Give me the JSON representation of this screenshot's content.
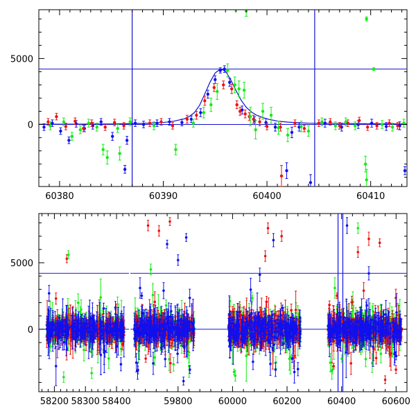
{
  "chart_data": [
    {
      "type": "scatter",
      "panel": "top",
      "title": "",
      "xlabel": "",
      "ylabel": "",
      "xlim": [
        60378,
        60413.5
      ],
      "ylim": [
        -4700,
        8700
      ],
      "xticks": [
        60380,
        60390,
        60400,
        60410
      ],
      "xtick_labels": [
        "60380",
        "60390",
        "60400",
        "60410"
      ],
      "yticks": [
        0,
        5000
      ],
      "ytick_labels": [
        "0",
        "5000"
      ],
      "grid": false,
      "legend": "none",
      "colors": {
        "blue": "#1010ee",
        "red": "#ee1010",
        "green": "#10ee10",
        "model": "#1010cc"
      },
      "reference_lines": {
        "vertical": [
          60387.0,
          60404.6
        ],
        "horizontal": [
          4200,
          0
        ]
      },
      "model_curve": {
        "x": [
          60378,
          60385,
          60388,
          60390,
          60391,
          60392,
          60392.5,
          60393,
          60393.5,
          60394,
          60394.5,
          60395,
          60395.5,
          60396,
          60396.5,
          60397,
          60397.5,
          60398,
          60398.5,
          60399,
          60400,
          60401,
          60402,
          60404,
          60413.5
        ],
        "y": [
          20,
          40,
          80,
          150,
          250,
          420,
          600,
          900,
          1450,
          2300,
          3200,
          3900,
          4200,
          4050,
          3400,
          2600,
          1850,
          1300,
          950,
          700,
          420,
          260,
          180,
          100,
          40
        ]
      },
      "series": [
        {
          "color": "blue",
          "x": [
            60378.5,
            60379.3,
            60380.1,
            60380.9,
            60381.6,
            60382.4,
            60383.2,
            60384.0,
            60385.1,
            60386.5,
            60387.3,
            60388.1,
            60389.4,
            60390.6,
            60391.8,
            60392.7,
            60393.6,
            60394.3,
            60395.0,
            60395.5,
            60395.9,
            60396.4,
            60397.6,
            60398.8,
            60399.9,
            60400.8,
            60401.9,
            60402.4,
            60403.1,
            60404.2,
            60405.6,
            60407.2,
            60408.8,
            60410.1,
            60411.5,
            60412.8,
            60413.3,
            60386.3
          ],
          "y": [
            -200,
            100,
            -500,
            -1200,
            50,
            -300,
            -100,
            200,
            -900,
            -1200,
            100,
            0,
            100,
            200,
            150,
            400,
            900,
            2300,
            3400,
            4100,
            4200,
            3200,
            1100,
            300,
            150,
            -200,
            -3500,
            -600,
            -200,
            -4400,
            100,
            -200,
            0,
            100,
            -150,
            -100,
            -3500,
            -3400
          ],
          "yerr": [
            250,
            250,
            250,
            250,
            250,
            250,
            250,
            250,
            300,
            300,
            250,
            250,
            250,
            250,
            250,
            250,
            300,
            300,
            300,
            200,
            250,
            300,
            300,
            300,
            300,
            300,
            600,
            400,
            300,
            600,
            300,
            300,
            300,
            300,
            300,
            300,
            300,
            300
          ]
        },
        {
          "color": "red",
          "x": [
            60378.9,
            60379.7,
            60380.6,
            60381.5,
            60382.3,
            60383.1,
            60384.4,
            60385.3,
            60386.2,
            60388.7,
            60389.8,
            60390.9,
            60392.3,
            60393.2,
            60394.0,
            60394.9,
            60395.8,
            60396.6,
            60397.1,
            60397.4,
            60397.9,
            60398.3,
            60398.7,
            60399.3,
            60400.0,
            60401.3,
            60402.7,
            60403.6,
            60405.0,
            60406.1,
            60407.0,
            60407.8,
            60408.9,
            60409.7,
            60410.6,
            60411.8,
            60412.6,
            60401.4
          ],
          "y": [
            200,
            600,
            -150,
            250,
            -300,
            100,
            -200,
            150,
            -100,
            100,
            200,
            -100,
            400,
            700,
            1800,
            2800,
            3000,
            2700,
            1500,
            1000,
            800,
            600,
            400,
            200,
            -150,
            -200,
            100,
            -300,
            100,
            200,
            -100,
            100,
            300,
            -200,
            -100,
            100,
            -100,
            -3900
          ],
          "yerr": [
            250,
            250,
            250,
            250,
            250,
            250,
            250,
            250,
            250,
            250,
            250,
            250,
            300,
            300,
            350,
            300,
            300,
            350,
            300,
            300,
            300,
            300,
            300,
            300,
            250,
            300,
            250,
            250,
            250,
            250,
            250,
            250,
            250,
            250,
            250,
            250,
            250,
            800
          ]
        },
        {
          "color": "green",
          "x": [
            60379.1,
            60380.4,
            60381.2,
            60382.0,
            60382.8,
            60383.6,
            60384.2,
            60385.6,
            60386.8,
            60389.1,
            60391.2,
            60392.9,
            60393.9,
            60394.6,
            60395.2,
            60396.2,
            60396.9,
            60397.3,
            60397.8,
            60398.4,
            60398.9,
            60399.6,
            60400.4,
            60401.1,
            60402.0,
            60403.3,
            60404.0,
            60405.3,
            60406.6,
            60407.6,
            60408.5,
            60409.6,
            60410.3,
            60411.1,
            60412.1,
            60413.2,
            60398.0,
            60397.0,
            60409.5,
            60409.6,
            60384.6,
            60385.8
          ],
          "y": [
            -100,
            200,
            -900,
            -400,
            100,
            -200,
            -1900,
            -300,
            200,
            -100,
            -1900,
            100,
            900,
            1500,
            2500,
            4100,
            3000,
            2700,
            2600,
            600,
            -400,
            1000,
            700,
            -250,
            -800,
            -150,
            -500,
            200,
            -100,
            200,
            -100,
            8000,
            4200,
            0,
            -200,
            100,
            8600,
            9000,
            -3000,
            -4200,
            -2500,
            -2200
          ],
          "yerr": [
            300,
            300,
            300,
            300,
            300,
            300,
            400,
            300,
            300,
            300,
            400,
            300,
            400,
            500,
            600,
            500,
            600,
            600,
            600,
            700,
            700,
            600,
            600,
            500,
            500,
            400,
            400,
            300,
            300,
            300,
            300,
            150,
            100,
            300,
            300,
            300,
            400,
            400,
            600,
            800,
            500,
            500
          ]
        }
      ]
    },
    {
      "type": "scatter",
      "panel": "bottom",
      "title": "",
      "xlabel": "",
      "ylabel": "",
      "broken_x_axis": true,
      "segments": [
        {
          "xlim": [
            58150,
            58440
          ],
          "xticks": [
            58200,
            58300,
            58400
          ],
          "xtick_labels": [
            "58200",
            "58300",
            "58400"
          ]
        },
        {
          "xlim": [
            59625,
            60640
          ],
          "xticks": [
            59800,
            60000,
            60200,
            60400,
            60600
          ],
          "xtick_labels": [
            "59800",
            "60000",
            "60200",
            "60400",
            "60600"
          ]
        }
      ],
      "ylim": [
        -4700,
        8700
      ],
      "yticks": [
        0,
        5000
      ],
      "ytick_labels": [
        "0",
        "5000"
      ],
      "grid": false,
      "legend": "none",
      "colors": {
        "blue": "#1010ee",
        "red": "#ee1010",
        "green": "#10ee10"
      },
      "reference_lines": {
        "vertical": [
          60387.0,
          60404.6
        ],
        "horizontal": [
          4200,
          0
        ]
      },
      "seasons": [
        {
          "x_start": 58175,
          "x_end": 58425,
          "scatter": 900
        },
        {
          "x_start": 59640,
          "x_end": 59860,
          "scatter": 1300
        },
        {
          "x_start": 59985,
          "x_end": 60250,
          "scatter": 1500
        },
        {
          "x_start": 60350,
          "x_end": 60620,
          "scatter": 1300
        }
      ],
      "highlight_points": [
        {
          "color": "red",
          "x": 58240,
          "y": 5300,
          "yerr": 300
        },
        {
          "color": "green",
          "x": 58245,
          "y": 5600,
          "yerr": 300
        },
        {
          "color": "blue",
          "x": 58183,
          "y": 2700,
          "yerr": 600
        },
        {
          "color": "red",
          "x": 59690,
          "y": 7800,
          "yerr": 400
        },
        {
          "color": "red",
          "x": 59770,
          "y": 8100,
          "yerr": 300
        },
        {
          "color": "blue",
          "x": 59830,
          "y": 6900,
          "yerr": 300
        },
        {
          "color": "blue",
          "x": 59760,
          "y": 6400,
          "yerr": 300
        },
        {
          "color": "red",
          "x": 59730,
          "y": 7400,
          "yerr": 400
        },
        {
          "color": "blue",
          "x": 59800,
          "y": 5200,
          "yerr": 400
        },
        {
          "color": "green",
          "x": 59700,
          "y": 4500,
          "yerr": 400
        },
        {
          "color": "red",
          "x": 60130,
          "y": 7600,
          "yerr": 400
        },
        {
          "color": "blue",
          "x": 60150,
          "y": 6700,
          "yerr": 500
        },
        {
          "color": "red",
          "x": 60180,
          "y": 7000,
          "yerr": 400
        },
        {
          "color": "red",
          "x": 60120,
          "y": 5500,
          "yerr": 400
        },
        {
          "color": "blue",
          "x": 60100,
          "y": 4100,
          "yerr": 500
        },
        {
          "color": "green",
          "x": 60460,
          "y": 7600,
          "yerr": 400
        },
        {
          "color": "red",
          "x": 60500,
          "y": 6800,
          "yerr": 500
        },
        {
          "color": "red",
          "x": 60540,
          "y": 6500,
          "yerr": 300
        },
        {
          "color": "red",
          "x": 60460,
          "y": 5800,
          "yerr": 400
        },
        {
          "color": "blue",
          "x": 60500,
          "y": 4200,
          "yerr": 500
        },
        {
          "color": "blue",
          "x": 60420,
          "y": 7800,
          "yerr": 600
        },
        {
          "color": "red",
          "x": 60560,
          "y": -3800,
          "yerr": 300
        },
        {
          "color": "blue",
          "x": 60600,
          "y": -2000,
          "yerr": 300
        },
        {
          "color": "green",
          "x": 58230,
          "y": -3600,
          "yerr": 400
        },
        {
          "color": "green",
          "x": 58320,
          "y": -3300,
          "yerr": 400
        },
        {
          "color": "blue",
          "x": 59820,
          "y": -3900,
          "yerr": 300
        },
        {
          "color": "green",
          "x": 60010,
          "y": -3500,
          "yerr": 400
        },
        {
          "color": "blue",
          "x": 60240,
          "y": -3000,
          "yerr": 500
        }
      ]
    }
  ]
}
